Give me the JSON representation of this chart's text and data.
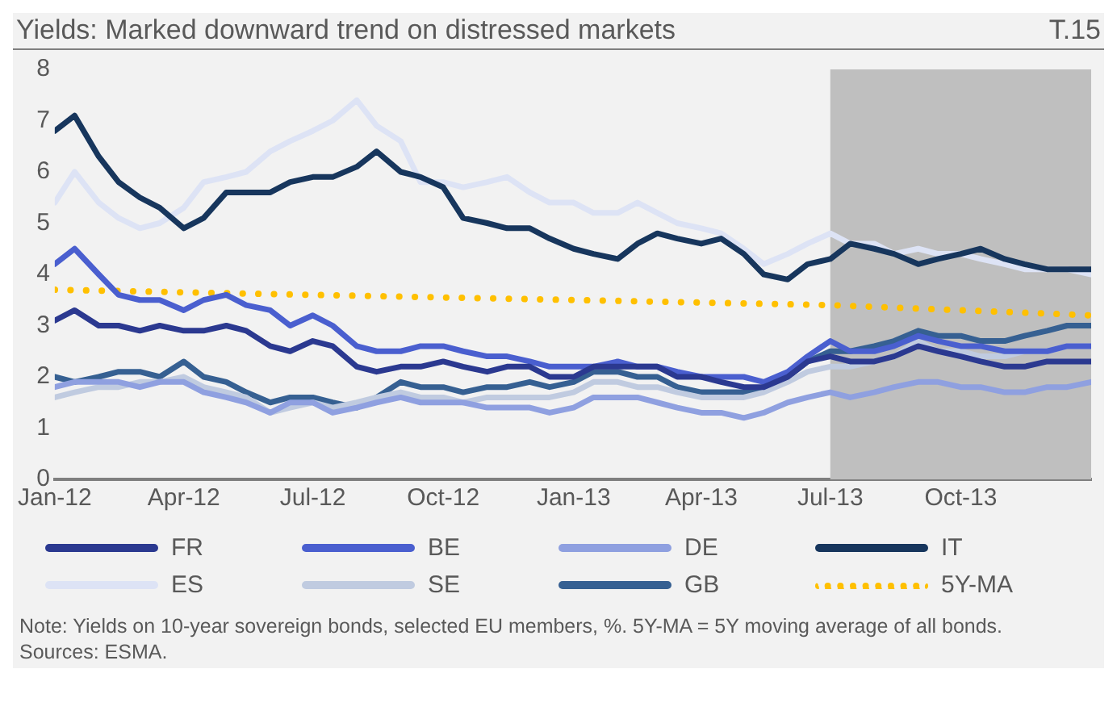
{
  "chart_data": {
    "type": "line",
    "title": "Yields: Marked downward trend on distressed markets",
    "annotations": [
      "T.15",
      "Note: Yields on 10-year sovereign bonds, selected EU members, %. 5Y-MA = 5Y moving average of all bonds.",
      "Sources: ESMA."
    ],
    "x": [
      "2012-01-01",
      "2012-01-15",
      "2012-02-01",
      "2012-02-15",
      "2012-03-01",
      "2012-03-15",
      "2012-04-01",
      "2012-04-15",
      "2012-05-01",
      "2012-05-15",
      "2012-06-01",
      "2012-06-15",
      "2012-07-01",
      "2012-07-15",
      "2012-08-01",
      "2012-08-15",
      "2012-09-01",
      "2012-09-15",
      "2012-10-01",
      "2012-10-15",
      "2012-11-01",
      "2012-11-15",
      "2012-12-01",
      "2012-12-15",
      "2013-01-01",
      "2013-01-15",
      "2013-02-01",
      "2013-02-15",
      "2013-03-01",
      "2013-03-15",
      "2013-04-01",
      "2013-04-15",
      "2013-05-01",
      "2013-05-15",
      "2013-06-01",
      "2013-06-15",
      "2013-07-01",
      "2013-07-15",
      "2013-08-01",
      "2013-08-15",
      "2013-09-01",
      "2013-09-15",
      "2013-10-01",
      "2013-10-15",
      "2013-11-01",
      "2013-11-15",
      "2013-12-01",
      "2013-12-15",
      "2014-01-01"
    ],
    "series": [
      {
        "name": "FR",
        "color": "#2b3990",
        "values": [
          3.1,
          3.3,
          3.0,
          3.0,
          2.9,
          3.0,
          2.9,
          2.9,
          3.0,
          2.9,
          2.6,
          2.5,
          2.7,
          2.6,
          2.2,
          2.1,
          2.2,
          2.2,
          2.3,
          2.2,
          2.1,
          2.2,
          2.2,
          2.0,
          2.0,
          2.2,
          2.2,
          2.2,
          2.2,
          2.0,
          2.0,
          1.9,
          1.8,
          1.8,
          2.0,
          2.3,
          2.4,
          2.3,
          2.3,
          2.4,
          2.6,
          2.5,
          2.4,
          2.3,
          2.2,
          2.2,
          2.3,
          2.3,
          2.3
        ]
      },
      {
        "name": "BE",
        "color": "#4a5fcf",
        "values": [
          4.2,
          4.5,
          4.0,
          3.6,
          3.5,
          3.5,
          3.3,
          3.5,
          3.6,
          3.4,
          3.3,
          3.0,
          3.2,
          3.0,
          2.6,
          2.5,
          2.5,
          2.6,
          2.6,
          2.5,
          2.4,
          2.4,
          2.3,
          2.2,
          2.2,
          2.2,
          2.3,
          2.2,
          2.2,
          2.1,
          2.0,
          2.0,
          2.0,
          1.9,
          2.1,
          2.4,
          2.7,
          2.5,
          2.5,
          2.6,
          2.8,
          2.7,
          2.6,
          2.6,
          2.5,
          2.5,
          2.5,
          2.6,
          2.6
        ]
      },
      {
        "name": "DE",
        "color": "#8fa0e0",
        "values": [
          1.8,
          1.9,
          1.9,
          1.9,
          1.8,
          1.9,
          1.9,
          1.7,
          1.6,
          1.5,
          1.3,
          1.5,
          1.5,
          1.3,
          1.4,
          1.5,
          1.6,
          1.5,
          1.5,
          1.5,
          1.4,
          1.4,
          1.4,
          1.3,
          1.4,
          1.6,
          1.6,
          1.6,
          1.5,
          1.4,
          1.3,
          1.3,
          1.2,
          1.3,
          1.5,
          1.6,
          1.7,
          1.6,
          1.7,
          1.8,
          1.9,
          1.9,
          1.8,
          1.8,
          1.7,
          1.7,
          1.8,
          1.8,
          1.9
        ]
      },
      {
        "name": "IT",
        "color": "#17365d",
        "values": [
          6.8,
          7.1,
          6.3,
          5.8,
          5.5,
          5.3,
          4.9,
          5.1,
          5.6,
          5.6,
          5.6,
          5.8,
          5.9,
          5.9,
          6.1,
          6.4,
          6.0,
          5.9,
          5.7,
          5.1,
          5.0,
          4.9,
          4.9,
          4.7,
          4.5,
          4.4,
          4.3,
          4.6,
          4.8,
          4.7,
          4.6,
          4.7,
          4.4,
          4.0,
          3.9,
          4.2,
          4.3,
          4.6,
          4.5,
          4.4,
          4.2,
          4.3,
          4.4,
          4.5,
          4.3,
          4.2,
          4.1,
          4.1,
          4.1
        ]
      },
      {
        "name": "ES",
        "color": "#dde3f5",
        "values": [
          5.4,
          6.0,
          5.4,
          5.1,
          4.9,
          5.0,
          5.3,
          5.8,
          5.9,
          6.0,
          6.4,
          6.6,
          6.8,
          7.0,
          7.4,
          6.9,
          6.6,
          5.8,
          5.8,
          5.7,
          5.8,
          5.9,
          5.6,
          5.4,
          5.4,
          5.2,
          5.2,
          5.4,
          5.2,
          5.0,
          4.9,
          4.8,
          4.5,
          4.2,
          4.4,
          4.6,
          4.8,
          4.6,
          4.6,
          4.4,
          4.5,
          4.4,
          4.4,
          4.3,
          4.2,
          4.1,
          4.1,
          4.1,
          4.0
        ]
      },
      {
        "name": "SE",
        "color": "#c0cbe0",
        "values": [
          1.6,
          1.7,
          1.8,
          1.8,
          1.9,
          1.9,
          2.0,
          1.8,
          1.7,
          1.6,
          1.3,
          1.4,
          1.5,
          1.4,
          1.5,
          1.6,
          1.7,
          1.6,
          1.6,
          1.5,
          1.6,
          1.6,
          1.6,
          1.6,
          1.7,
          1.9,
          1.9,
          1.8,
          1.8,
          1.7,
          1.6,
          1.6,
          1.6,
          1.7,
          1.9,
          2.1,
          2.2,
          2.2,
          2.3,
          2.4,
          2.7,
          2.5,
          2.5,
          2.4,
          2.4,
          2.5,
          2.5,
          2.6,
          2.6
        ]
      },
      {
        "name": "GB",
        "color": "#366092",
        "values": [
          2.0,
          1.9,
          2.0,
          2.1,
          2.1,
          2.0,
          2.3,
          2.0,
          1.9,
          1.7,
          1.5,
          1.6,
          1.6,
          1.5,
          1.4,
          1.6,
          1.9,
          1.8,
          1.8,
          1.7,
          1.8,
          1.8,
          1.9,
          1.8,
          1.9,
          2.1,
          2.1,
          2.0,
          2.0,
          1.8,
          1.7,
          1.7,
          1.7,
          1.8,
          2.0,
          2.3,
          2.5,
          2.5,
          2.6,
          2.7,
          2.9,
          2.8,
          2.8,
          2.7,
          2.7,
          2.8,
          2.9,
          3.0,
          3.0
        ]
      },
      {
        "name": "5Y-MA",
        "color": "#ffc000",
        "line_style": "dotted",
        "x": [
          "2012-01-01",
          "2012-07-01",
          "2013-01-01",
          "2013-07-01",
          "2014-01-01"
        ],
        "values": [
          3.7,
          3.6,
          3.5,
          3.4,
          3.2
        ]
      }
    ],
    "xlim": [
      "2012-01-01",
      "2014-01-01"
    ],
    "xticks": [
      {
        "value": "2012-01-01",
        "label": "Jan-12"
      },
      {
        "value": "2012-04-01",
        "label": "Apr-12"
      },
      {
        "value": "2012-07-01",
        "label": "Jul-12"
      },
      {
        "value": "2012-10-01",
        "label": "Oct-12"
      },
      {
        "value": "2013-01-01",
        "label": "Jan-13"
      },
      {
        "value": "2013-04-01",
        "label": "Apr-13"
      },
      {
        "value": "2013-07-01",
        "label": "Jul-13"
      },
      {
        "value": "2013-10-01",
        "label": "Oct-13"
      }
    ],
    "ylim": [
      0,
      8
    ],
    "yticks": [
      0,
      1,
      2,
      3,
      4,
      5,
      6,
      7,
      8
    ],
    "bands": [
      {
        "axis": "x",
        "from": "2013-07-01",
        "to": "2014-01-01",
        "color": "#bfbfbf"
      }
    ],
    "grid": false,
    "legend": "bottom",
    "line_style": "solid",
    "marker": "none"
  }
}
